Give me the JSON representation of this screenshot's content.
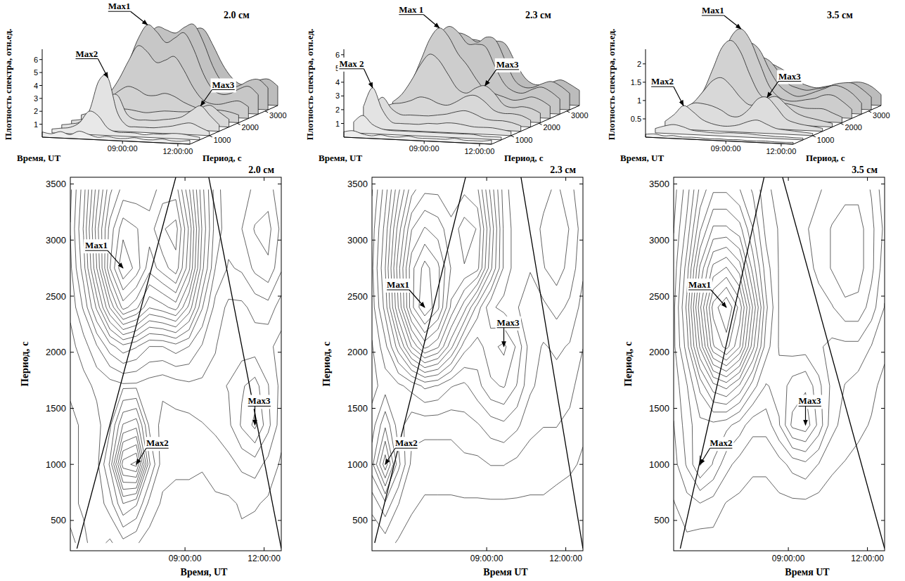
{
  "chart_data": [
    {
      "x": [
        4.65,
        5.15,
        5.65,
        6.15,
        6.65,
        7.15,
        7.65,
        8.15,
        8.65,
        9.15,
        9.65,
        10.15,
        10.65,
        11.15,
        11.65,
        12.15,
        12.65
      ],
      "y": [
        300,
        650,
        1000,
        1350,
        1700,
        2050,
        2400,
        2750,
        3100,
        3450
      ],
      "cells": [
        [
          0.4,
          0.3,
          0.5,
          0.3,
          0.6,
          0.4,
          0.2,
          0.3,
          0.2,
          0.2,
          0.3,
          0.2,
          0.2,
          0.3,
          0.2,
          0.2,
          0.3
        ],
        [
          0.3,
          0.4,
          0.5,
          0.9,
          1.8,
          1.5,
          0.6,
          0.3,
          0.3,
          0.3,
          0.2,
          0.3,
          0.3,
          0.4,
          0.4,
          0.3,
          0.2
        ],
        [
          0.3,
          0.4,
          0.6,
          1.5,
          3.8,
          4.1,
          1.5,
          0.5,
          0.4,
          0.4,
          0.4,
          0.5,
          0.6,
          0.8,
          0.9,
          0.6,
          0.3
        ],
        [
          0.3,
          0.4,
          0.6,
          1.0,
          2.2,
          2.4,
          1.0,
          0.6,
          0.6,
          0.6,
          0.7,
          0.8,
          1.0,
          1.5,
          1.9,
          1.2,
          0.5
        ],
        [
          0.4,
          0.6,
          0.8,
          0.9,
          1.0,
          1.0,
          0.9,
          0.8,
          0.9,
          1.0,
          1.0,
          1.0,
          1.1,
          1.4,
          1.6,
          1.1,
          0.6
        ],
        [
          0.6,
          0.9,
          1.4,
          2.0,
          2.4,
          2.2,
          1.8,
          1.8,
          2.0,
          1.8,
          1.4,
          1.1,
          0.9,
          0.9,
          0.9,
          0.8,
          0.6
        ],
        [
          0.8,
          1.5,
          2.6,
          4.0,
          5.2,
          4.8,
          4.0,
          4.2,
          4.5,
          3.5,
          2.2,
          1.3,
          1.0,
          1.0,
          1.2,
          1.3,
          0.9
        ],
        [
          1.0,
          2.0,
          3.6,
          5.4,
          6.5,
          6.0,
          5.2,
          5.6,
          6.0,
          4.8,
          3.0,
          1.8,
          1.4,
          1.5,
          1.9,
          2.1,
          1.5
        ],
        [
          1.1,
          2.2,
          3.8,
          5.2,
          6.0,
          5.8,
          5.6,
          6.1,
          6.3,
          5.0,
          3.2,
          2.0,
          1.6,
          1.8,
          2.2,
          2.3,
          1.7
        ],
        [
          1.0,
          2.0,
          3.4,
          4.6,
          5.2,
          5.2,
          5.2,
          5.6,
          5.6,
          4.4,
          3.0,
          2.0,
          1.5,
          1.6,
          1.9,
          2.0,
          1.5
        ]
      ],
      "surface": {
        "type": "surface",
        "title": "2.0 см",
        "x_label": "Время, UT",
        "y_label": "Период, с",
        "z_label": "Плотность спектра, отн.ед.",
        "xlim": [
          4.65,
          12.65
        ],
        "ylim": [
          300,
          3450
        ],
        "zlim": [
          0,
          6.8
        ],
        "xticks": [
          {
            "value": 9,
            "label": "09:00:00"
          },
          {
            "value": 12,
            "label": "12:00:00"
          }
        ],
        "yticks": [
          1000,
          2000,
          3000
        ],
        "zticks": [
          1,
          2,
          3,
          4,
          5,
          6
        ],
        "annotations": [
          {
            "text": "Max1",
            "x": 6.65,
            "y": 2750
          },
          {
            "text": "Max2",
            "x": 7.15,
            "y": 1000
          },
          {
            "text": "Max3",
            "x": 11.65,
            "y": 1350
          }
        ]
      },
      "contour": {
        "type": "contour",
        "title": "2.0 см",
        "x_label": "Время, UT",
        "y_label": "Период, с",
        "xlim": [
          4.65,
          12.65
        ],
        "ylim": [
          230,
          3560
        ],
        "xticks": [
          {
            "value": 9,
            "label": "09:00:00"
          },
          {
            "value": 12,
            "label": "12:00:00"
          }
        ],
        "yticks": [
          500,
          1000,
          1500,
          2000,
          2500,
          3000,
          3500
        ],
        "cone": [
          [
            [
              4.9,
              250
            ],
            [
              8.65,
              3560
            ]
          ],
          [
            [
              9.9,
              3560
            ],
            [
              12.65,
              250
            ]
          ]
        ],
        "annotations": [
          {
            "text": "Max1",
            "x": 6.65,
            "y": 2750
          },
          {
            "text": "Max2",
            "x": 7.15,
            "y": 1000
          },
          {
            "text": "Max3",
            "x": 11.65,
            "y": 1350
          }
        ]
      }
    },
    {
      "x": [
        4.65,
        5.15,
        5.65,
        6.15,
        6.65,
        7.15,
        7.65,
        8.15,
        8.65,
        9.15,
        9.65,
        10.15,
        10.65,
        11.15,
        11.65,
        12.15,
        12.65
      ],
      "y": [
        300,
        650,
        1000,
        1350,
        1700,
        2050,
        2400,
        2750,
        3100,
        3450
      ],
      "cells": [
        [
          0.4,
          0.5,
          0.3,
          0.2,
          0.3,
          0.2,
          0.2,
          0.3,
          0.2,
          0.2,
          0.2,
          0.2,
          0.3,
          0.2,
          0.2,
          0.2,
          0.3
        ],
        [
          0.8,
          1.3,
          0.7,
          0.4,
          0.3,
          0.3,
          0.3,
          0.3,
          0.3,
          0.3,
          0.3,
          0.3,
          0.3,
          0.3,
          0.2,
          0.2,
          0.2
        ],
        [
          1.6,
          3.0,
          1.5,
          0.6,
          0.5,
          0.5,
          0.5,
          0.6,
          0.6,
          0.7,
          0.7,
          0.6,
          0.5,
          0.5,
          0.5,
          0.4,
          0.3
        ],
        [
          1.2,
          2.0,
          1.2,
          0.8,
          0.8,
          0.8,
          0.8,
          0.9,
          1.0,
          1.2,
          1.3,
          1.1,
          0.8,
          0.7,
          0.7,
          0.6,
          0.4
        ],
        [
          0.9,
          1.2,
          1.3,
          1.5,
          1.8,
          1.7,
          1.4,
          1.3,
          1.6,
          2.0,
          2.1,
          1.7,
          1.1,
          0.9,
          0.9,
          0.8,
          0.5
        ],
        [
          1.0,
          1.6,
          2.6,
          3.8,
          4.6,
          4.2,
          3.2,
          2.2,
          1.9,
          2.3,
          2.5,
          2.0,
          1.2,
          1.0,
          1.1,
          1.0,
          0.7
        ],
        [
          1.2,
          2.2,
          3.8,
          5.4,
          6.2,
          5.6,
          4.4,
          3.6,
          2.6,
          1.8,
          1.6,
          1.4,
          1.2,
          1.3,
          1.5,
          1.3,
          0.9
        ],
        [
          1.3,
          2.4,
          4.0,
          5.4,
          6.0,
          5.6,
          4.8,
          4.8,
          4.6,
          3.2,
          2.0,
          1.5,
          1.4,
          1.7,
          1.9,
          1.6,
          1.1
        ],
        [
          1.2,
          2.2,
          3.6,
          4.8,
          5.2,
          5.0,
          4.6,
          5.0,
          4.8,
          3.4,
          2.0,
          1.5,
          1.5,
          1.8,
          2.0,
          1.7,
          1.2
        ],
        [
          1.0,
          1.9,
          3.0,
          4.0,
          4.4,
          4.4,
          4.2,
          4.4,
          4.2,
          3.0,
          1.9,
          1.4,
          1.4,
          1.6,
          1.8,
          1.5,
          1.1
        ]
      ],
      "surface": {
        "type": "surface",
        "title": "2.3 см",
        "x_label": "Время, UT",
        "y_label": "Период, с",
        "z_label": "Плотность спектра, отн.ед.",
        "xlim": [
          4.65,
          12.65
        ],
        "ylim": [
          300,
          3450
        ],
        "zlim": [
          0,
          6.4
        ],
        "xticks": [
          {
            "value": 9,
            "label": "09:00:00"
          },
          {
            "value": 12,
            "label": "12:00:00"
          }
        ],
        "yticks": [
          1000,
          2000,
          3000
        ],
        "zticks": [
          1,
          2,
          3,
          4,
          5,
          6
        ],
        "annotations": [
          {
            "text": "Max 1",
            "x": 6.65,
            "y": 2400
          },
          {
            "text": "Max 2",
            "x": 5.15,
            "y": 1000
          },
          {
            "text": "Max3",
            "x": 9.65,
            "y": 2050
          }
        ]
      },
      "contour": {
        "type": "contour",
        "title": "2.3 см",
        "x_label": "Время UT",
        "y_label": "Период, с",
        "xlim": [
          4.65,
          12.65
        ],
        "ylim": [
          230,
          3560
        ],
        "xticks": [
          {
            "value": 9,
            "label": "09:00:00"
          },
          {
            "value": 12,
            "label": "12:00:00"
          }
        ],
        "yticks": [
          500,
          1000,
          1500,
          2000,
          2500,
          3000,
          3500
        ],
        "cone": [
          [
            [
              4.75,
              300
            ],
            [
              8.2,
              3560
            ]
          ],
          [
            [
              10.3,
              3560
            ],
            [
              12.65,
              250
            ]
          ]
        ],
        "annotations": [
          {
            "text": "Max1",
            "x": 6.65,
            "y": 2400
          },
          {
            "text": "Max2",
            "x": 5.15,
            "y": 1000
          },
          {
            "text": "Max3",
            "x": 9.65,
            "y": 2050
          }
        ]
      }
    },
    {
      "x": [
        4.65,
        5.15,
        5.65,
        6.15,
        6.65,
        7.15,
        7.65,
        8.15,
        8.65,
        9.15,
        9.65,
        10.15,
        10.65,
        11.15,
        11.65,
        12.15,
        12.65
      ],
      "y": [
        300,
        650,
        1000,
        1350,
        1700,
        2050,
        2400,
        2750,
        3100,
        3450
      ],
      "cells": [
        [
          0.08,
          0.1,
          0.06,
          0.08,
          0.05,
          0.06,
          0.05,
          0.04,
          0.05,
          0.04,
          0.05,
          0.04,
          0.04,
          0.05,
          0.04,
          0.04,
          0.05
        ],
        [
          0.12,
          0.2,
          0.25,
          0.2,
          0.12,
          0.1,
          0.08,
          0.08,
          0.1,
          0.1,
          0.1,
          0.08,
          0.07,
          0.06,
          0.06,
          0.05,
          0.05
        ],
        [
          0.2,
          0.4,
          0.65,
          0.5,
          0.3,
          0.2,
          0.15,
          0.15,
          0.2,
          0.3,
          0.35,
          0.25,
          0.15,
          0.12,
          0.1,
          0.08,
          0.06
        ],
        [
          0.25,
          0.45,
          0.6,
          0.6,
          0.55,
          0.45,
          0.3,
          0.3,
          0.5,
          0.8,
          0.85,
          0.6,
          0.3,
          0.2,
          0.15,
          0.12,
          0.08
        ],
        [
          0.3,
          0.5,
          0.8,
          1.1,
          1.2,
          1.0,
          0.7,
          0.5,
          0.55,
          0.7,
          0.75,
          0.55,
          0.35,
          0.25,
          0.2,
          0.15,
          0.1
        ],
        [
          0.35,
          0.7,
          1.3,
          1.9,
          2.1,
          1.8,
          1.2,
          0.7,
          0.5,
          0.45,
          0.45,
          0.4,
          0.35,
          0.35,
          0.35,
          0.25,
          0.15
        ],
        [
          0.35,
          0.8,
          1.5,
          2.1,
          2.3,
          2.0,
          1.4,
          0.8,
          0.5,
          0.4,
          0.4,
          0.45,
          0.5,
          0.6,
          0.6,
          0.45,
          0.25
        ],
        [
          0.3,
          0.7,
          1.3,
          1.7,
          1.8,
          1.6,
          1.1,
          0.7,
          0.5,
          0.4,
          0.45,
          0.55,
          0.65,
          0.75,
          0.7,
          0.55,
          0.3
        ],
        [
          0.25,
          0.55,
          1.0,
          1.3,
          1.3,
          1.2,
          0.9,
          0.6,
          0.5,
          0.45,
          0.5,
          0.55,
          0.65,
          0.7,
          0.7,
          0.55,
          0.35
        ],
        [
          0.2,
          0.45,
          0.8,
          1.0,
          1.0,
          0.9,
          0.75,
          0.55,
          0.45,
          0.4,
          0.45,
          0.5,
          0.55,
          0.6,
          0.6,
          0.5,
          0.3
        ]
      ],
      "surface": {
        "type": "surface",
        "title": "3.5 см",
        "x_label": "Время, UT",
        "y_label": "Период, с",
        "z_label": "Плотность спектра, отн.ед.",
        "xlim": [
          4.65,
          12.65
        ],
        "ylim": [
          300,
          3450
        ],
        "zlim": [
          0,
          2.4
        ],
        "xticks": [
          {
            "value": 9,
            "label": "09:00:00"
          },
          {
            "value": 12,
            "label": "12:00:00"
          }
        ],
        "yticks": [
          1000,
          2000,
          3000
        ],
        "zticks": [
          0.5,
          1,
          1.5,
          2
        ],
        "annotations": [
          {
            "text": "Max1",
            "x": 6.65,
            "y": 2400
          },
          {
            "text": "Max2",
            "x": 5.65,
            "y": 1000
          },
          {
            "text": "Max3",
            "x": 9.65,
            "y": 1350
          }
        ]
      },
      "contour": {
        "type": "contour",
        "title": "3.5 см",
        "x_label": "Время UT",
        "y_label": "Период, с",
        "xlim": [
          4.65,
          12.65
        ],
        "ylim": [
          230,
          3560
        ],
        "xticks": [
          {
            "value": 9,
            "label": "09:00:00"
          },
          {
            "value": 12,
            "label": "12:00:00"
          }
        ],
        "yticks": [
          500,
          1000,
          1500,
          2000,
          2500,
          3000,
          3500
        ],
        "cone": [
          [
            [
              4.9,
              250
            ],
            [
              8.08,
              3560
            ]
          ],
          [
            [
              8.78,
              3560
            ],
            [
              12.65,
              250
            ]
          ]
        ],
        "annotations": [
          {
            "text": "Max1",
            "x": 6.65,
            "y": 2400
          },
          {
            "text": "Max2",
            "x": 5.65,
            "y": 1000
          },
          {
            "text": "Max3",
            "x": 9.65,
            "y": 1350
          }
        ]
      }
    }
  ]
}
